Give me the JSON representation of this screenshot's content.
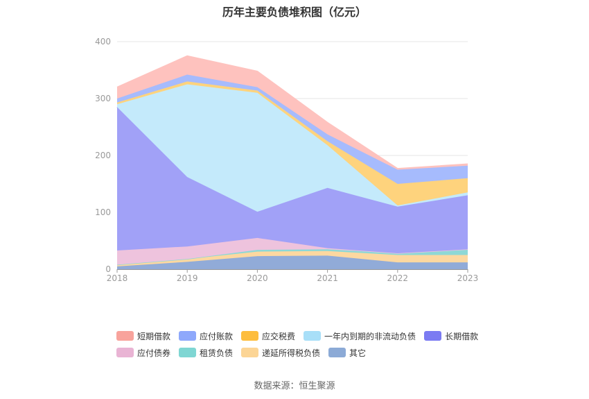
{
  "chart_data": {
    "type": "area",
    "stacked": true,
    "title": "历年主要负债堆积图（亿元）",
    "x": [
      "2018",
      "2019",
      "2020",
      "2021",
      "2022",
      "2023"
    ],
    "yticks": [
      "0",
      "100",
      "200",
      "300",
      "400"
    ],
    "ylim": [
      0,
      400
    ],
    "grid": true,
    "legend_position": "bottom",
    "series": [
      {
        "name": "其它",
        "color": "#91abd8",
        "values": [
          5,
          13,
          23,
          24,
          12,
          12
        ]
      },
      {
        "name": "递延所得税负债",
        "color": "#fdd8a0",
        "values": [
          3,
          5,
          8,
          8,
          13,
          13
        ]
      },
      {
        "name": "租赁负债",
        "color": "#8ed8d6",
        "values": [
          0,
          0,
          3,
          3,
          3,
          10
        ]
      },
      {
        "name": "应付债券",
        "color": "#eec3dd",
        "values": [
          25,
          22,
          21,
          2,
          0,
          0
        ]
      },
      {
        "name": "长期借款",
        "color": "#a1a1f7",
        "values": [
          252,
          122,
          46,
          106,
          82,
          95
        ]
      },
      {
        "name": "一年内到期的非流动负债",
        "color": "#c4eafb",
        "values": [
          5,
          163,
          209,
          75,
          2,
          5
        ]
      },
      {
        "name": "应交税费",
        "color": "#fed37d",
        "values": [
          3,
          5,
          4,
          7,
          38,
          25
        ]
      },
      {
        "name": "应付账款",
        "color": "#a6bbfd",
        "values": [
          7,
          12,
          6,
          12,
          25,
          22
        ]
      },
      {
        "name": "短期借款",
        "color": "#fec2be",
        "values": [
          20,
          33,
          28,
          21,
          2,
          3
        ]
      }
    ],
    "legend": [
      [
        {
          "name": "短期借款",
          "color": "#f8a39c"
        },
        {
          "name": "应付账款",
          "color": "#8ea8fb"
        },
        {
          "name": "应交税费",
          "color": "#fdbd3d"
        },
        {
          "name": "一年内到期的非流动负债",
          "color": "#a8dff8"
        },
        {
          "name": "长期借款",
          "color": "#7b7bf2"
        }
      ],
      [
        {
          "name": "应付债券",
          "color": "#e9b4d4"
        },
        {
          "name": "租赁负债",
          "color": "#7fd6d3"
        },
        {
          "name": "递延所得税负债",
          "color": "#fcd595"
        },
        {
          "name": "其它",
          "color": "#8caad6"
        }
      ]
    ]
  },
  "source": "数据来源：恒生聚源"
}
